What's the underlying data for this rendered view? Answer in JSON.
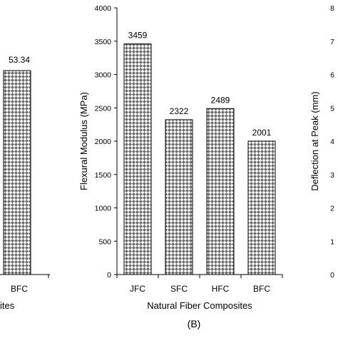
{
  "chart_data": [
    {
      "panel": "left-partial",
      "type": "bar",
      "categories": [
        "BFC"
      ],
      "values": [
        53.34
      ],
      "value_labels": [
        "53.34"
      ],
      "xlabel_partial": "ites"
    },
    {
      "panel": "(B)",
      "type": "bar",
      "categories": [
        "JFC",
        "SFC",
        "HFC",
        "BFC"
      ],
      "values": [
        3459,
        2322,
        2489,
        2001
      ],
      "value_labels": [
        "3459",
        "2322",
        "2489",
        "2001"
      ],
      "xlabel": "Natural Fiber Composites",
      "ylabel": "Flexural Modulus (MPa)",
      "ylim": [
        0,
        4000
      ],
      "yticks": [
        "0",
        "500",
        "1000",
        "1500",
        "2000",
        "2500",
        "3000",
        "3500",
        "4000"
      ],
      "grid": false,
      "bar_fill": "crosshatch-pattern",
      "colors": {
        "bar_pattern_dark": "#555555",
        "bar_pattern_light": "#ffffff",
        "bar_edge": "#000000"
      }
    },
    {
      "panel": "right-partial",
      "type": "bar",
      "ylabel": "Deflection at Peak (mm)",
      "yticks": [
        "0",
        "1",
        "2",
        "3",
        "4",
        "5",
        "6",
        "7",
        "8"
      ]
    }
  ],
  "panel_caption": "(B)"
}
